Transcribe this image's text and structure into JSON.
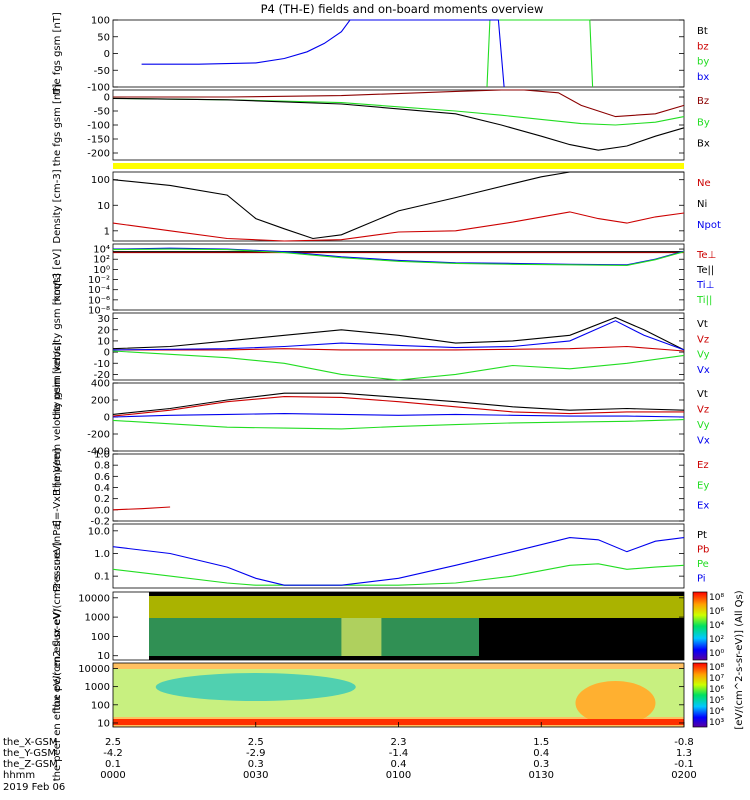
{
  "page": {
    "title": "P4 (TH-E) fields and on-board moments overview",
    "time_axis": {
      "row_labels": [
        "the_X-GSM",
        "the_Y-GSM",
        "the_Z-GSM",
        "hhmm",
        "2019 Feb 06"
      ],
      "columns": [
        {
          "hhmm": "0000",
          "x": "2.5",
          "y": "-4.2",
          "z": "0.1"
        },
        {
          "hhmm": "0030",
          "x": "2.5",
          "y": "-2.9",
          "z": "0.3"
        },
        {
          "hhmm": "0100",
          "x": "2.3",
          "y": "-1.4",
          "z": "0.4"
        },
        {
          "hhmm": "0130",
          "x": "1.5",
          "y": "0.4",
          "z": "0.3"
        },
        {
          "hhmm": "0200",
          "x": "-0.8",
          "y": "1.3",
          "z": "-0.1"
        }
      ]
    }
  },
  "colors": {
    "black": "#000000",
    "red": "#cc0000",
    "darkred": "#8b0000",
    "green": "#22dd22",
    "blue": "#0000ee",
    "yellow": "#ffff00"
  },
  "chart_data": [
    {
      "type": "line",
      "panel": "fgs_gsm",
      "ylabel": "the fgs gsm [nT]",
      "ylim": [
        -100,
        100
      ],
      "yticks": [
        "100",
        "50",
        "0",
        "-50",
        "-100"
      ],
      "series": [
        {
          "name": "Bt",
          "color": "#000000",
          "t": [],
          "y": []
        },
        {
          "name": "bz",
          "color": "#cc0000",
          "t": [],
          "y": []
        },
        {
          "name": "by",
          "color": "#22dd22",
          "t": [
            65.5,
            66.0,
            83.5,
            84.0
          ],
          "y": [
            -100,
            100,
            100,
            -100
          ]
        },
        {
          "name": "bx",
          "color": "#0000ee",
          "t": [
            5,
            15,
            25,
            30,
            34,
            37,
            40,
            41.5,
            67.5,
            68.5
          ],
          "y": [
            -32,
            -32,
            -28,
            -15,
            5,
            30,
            65,
            100,
            100,
            -100
          ]
        }
      ]
    },
    {
      "type": "line",
      "panel": "fgs_gsm_2",
      "ylabel": "the fgs gsm [nT]",
      "ylim": [
        -225,
        25
      ],
      "yticks": [
        "0",
        "-50",
        "-100",
        "-150",
        "-200"
      ],
      "series": [
        {
          "name": "Bz",
          "color": "#8b0000",
          "t": [
            0,
            20,
            40,
            60,
            68,
            72,
            78,
            82,
            88,
            95,
            100
          ],
          "y": [
            0,
            0,
            5,
            20,
            35,
            38,
            15,
            -30,
            -70,
            -60,
            -30
          ]
        },
        {
          "name": "By",
          "color": "#22dd22",
          "t": [
            0,
            20,
            40,
            60,
            68,
            75,
            82,
            88,
            95,
            100
          ],
          "y": [
            -5,
            -10,
            -20,
            -50,
            -65,
            -80,
            -95,
            -100,
            -90,
            -70
          ]
        },
        {
          "name": "Bx",
          "color": "#000000",
          "t": [
            0,
            20,
            40,
            60,
            68,
            75,
            80,
            85,
            90,
            95,
            100
          ],
          "y": [
            -5,
            -10,
            -25,
            -60,
            -100,
            -140,
            -170,
            -190,
            -175,
            -140,
            -110
          ]
        }
      ]
    },
    {
      "type": "line",
      "panel": "density",
      "ylabel": "Density [cm-3]",
      "log": true,
      "ylim": [
        0.4,
        200
      ],
      "yticks": [
        "100",
        "10",
        "1"
      ],
      "series": [
        {
          "name": "Ne",
          "color": "#cc0000",
          "t": [
            0,
            10,
            20,
            30,
            40,
            50,
            60,
            70,
            80,
            85,
            90,
            95,
            100
          ],
          "y": [
            2.0,
            1.0,
            0.5,
            0.4,
            0.45,
            0.9,
            1.0,
            2.2,
            5.5,
            3.0,
            2.0,
            3.5,
            5.0
          ]
        },
        {
          "name": "Ni",
          "color": "#000000",
          "t": [
            0,
            10,
            20,
            25,
            30,
            35,
            40,
            50,
            60,
            70,
            75,
            80,
            90,
            100
          ],
          "y": [
            100,
            60,
            25,
            3,
            1.2,
            0.5,
            0.7,
            6,
            20,
            70,
            130,
            220,
            220,
            200
          ]
        },
        {
          "name": "Npot",
          "color": "#0000ee",
          "t": [],
          "y": []
        }
      ]
    },
    {
      "type": "line",
      "panel": "moqt3",
      "ylabel": "moqt3 [eV]",
      "log": true,
      "ylim": [
        1e-08,
        100000.0
      ],
      "yticks": [
        "10^4",
        "10^2",
        "10^0",
        "10^-2",
        "10^-4",
        "10^-6",
        "10^-8"
      ],
      "series": [
        {
          "name": "Te⊥",
          "color": "#cc0000",
          "t": [
            0,
            100
          ],
          "y": [
            2000,
            2000
          ]
        },
        {
          "name": "Te||",
          "color": "#000000",
          "t": [
            0,
            100
          ],
          "y": [
            3000,
            3000
          ]
        },
        {
          "name": "Ti⊥",
          "color": "#0000ee",
          "t": [
            0,
            10,
            20,
            30,
            40,
            50,
            60,
            70,
            80,
            90,
            95,
            100
          ],
          "y": [
            10000,
            15000,
            10000,
            3000,
            300,
            60,
            20,
            15,
            10,
            8,
            100,
            4000
          ]
        },
        {
          "name": "Ti||",
          "color": "#22dd22",
          "t": [
            0,
            10,
            20,
            30,
            40,
            50,
            60,
            70,
            80,
            90,
            95,
            100
          ],
          "y": [
            8000,
            10000,
            8000,
            2000,
            200,
            40,
            15,
            10,
            8,
            6,
            80,
            3000
          ]
        }
      ]
    },
    {
      "type": "line",
      "panel": "peim_velocity_low",
      "ylabel": "the peim velocity gsm [km/s]",
      "ylim": [
        -25,
        35
      ],
      "yticks": [
        "30",
        "20",
        "10",
        "0",
        "-10",
        "-20"
      ],
      "series": [
        {
          "name": "Vt",
          "color": "#000000",
          "t": [
            0,
            10,
            20,
            30,
            40,
            50,
            60,
            70,
            80,
            88,
            93,
            100
          ],
          "y": [
            3,
            5,
            10,
            15,
            20,
            15,
            8,
            10,
            15,
            31,
            20,
            2
          ]
        },
        {
          "name": "Vz",
          "color": "#cc0000",
          "t": [
            0,
            20,
            30,
            40,
            60,
            80,
            90,
            100
          ],
          "y": [
            2,
            2,
            3,
            2,
            2,
            3,
            5,
            1
          ]
        },
        {
          "name": "Vy",
          "color": "#22dd22",
          "t": [
            0,
            10,
            20,
            30,
            40,
            50,
            60,
            70,
            80,
            90,
            100
          ],
          "y": [
            1,
            -2,
            -5,
            -10,
            -20,
            -25,
            -20,
            -12,
            -15,
            -10,
            -3
          ]
        },
        {
          "name": "Vx",
          "color": "#0000ee",
          "t": [
            0,
            20,
            30,
            40,
            50,
            60,
            70,
            80,
            88,
            93,
            100
          ],
          "y": [
            2,
            3,
            5,
            8,
            6,
            4,
            5,
            10,
            28,
            15,
            2
          ]
        }
      ]
    },
    {
      "type": "line",
      "panel": "peem_velocity",
      "ylabel": "the peem velocity gsm [km/s]",
      "ylim": [
        -400,
        400
      ],
      "yticks": [
        "400",
        "200",
        "0",
        "-200",
        "-400"
      ],
      "series": [
        {
          "name": "Vt",
          "color": "#000000",
          "t": [
            0,
            10,
            20,
            30,
            40,
            50,
            60,
            70,
            80,
            90,
            100
          ],
          "y": [
            30,
            100,
            200,
            280,
            280,
            230,
            180,
            120,
            80,
            100,
            80
          ]
        },
        {
          "name": "Vz",
          "color": "#cc0000",
          "t": [
            0,
            10,
            20,
            30,
            40,
            50,
            60,
            70,
            80,
            90,
            100
          ],
          "y": [
            10,
            80,
            180,
            240,
            230,
            180,
            120,
            60,
            40,
            60,
            60
          ]
        },
        {
          "name": "Vy",
          "color": "#22dd22",
          "t": [
            0,
            10,
            20,
            30,
            40,
            50,
            60,
            70,
            80,
            90,
            100
          ],
          "y": [
            -40,
            -80,
            -120,
            -130,
            -140,
            -110,
            -90,
            -70,
            -60,
            -50,
            -30
          ]
        },
        {
          "name": "Vx",
          "color": "#0000ee",
          "t": [
            0,
            10,
            20,
            30,
            40,
            50,
            60,
            70,
            80,
            90,
            100
          ],
          "y": [
            0,
            20,
            30,
            40,
            30,
            20,
            30,
            20,
            10,
            10,
            0
          ]
        }
      ]
    },
    {
      "type": "line",
      "panel": "efield",
      "ylabel": "E=-VxB [mV/m]",
      "ylim": [
        -0.2,
        1.0
      ],
      "yticks": [
        "1.0",
        "0.8",
        "0.6",
        "0.4",
        "0.2",
        "0.0",
        "-0.2"
      ],
      "series": [
        {
          "name": "Ez",
          "color": "#cc0000",
          "t": [
            0,
            5,
            10
          ],
          "y": [
            0.0,
            0.02,
            0.05
          ]
        },
        {
          "name": "Ey",
          "color": "#22dd22",
          "t": [],
          "y": []
        },
        {
          "name": "Ex",
          "color": "#0000ee",
          "t": [],
          "y": []
        }
      ]
    },
    {
      "type": "line",
      "panel": "pressure",
      "ylabel": "Pressure [nPa]",
      "log": true,
      "ylim": [
        0.03,
        20
      ],
      "yticks": [
        "10.0",
        "1.0",
        "0.1"
      ],
      "series": [
        {
          "name": "Pt",
          "color": "#000000",
          "t": [],
          "y": []
        },
        {
          "name": "Pb",
          "color": "#cc0000",
          "t": [],
          "y": []
        },
        {
          "name": "Pe",
          "color": "#22dd22",
          "t": [
            0,
            10,
            20,
            25,
            30,
            40,
            50,
            60,
            70,
            80,
            85,
            90,
            95,
            100
          ],
          "y": [
            0.2,
            0.1,
            0.05,
            0.04,
            0.04,
            0.04,
            0.04,
            0.05,
            0.1,
            0.3,
            0.35,
            0.2,
            0.25,
            0.3
          ]
        },
        {
          "name": "Pi",
          "color": "#0000ee",
          "t": [
            0,
            10,
            20,
            25,
            30,
            40,
            50,
            60,
            70,
            80,
            85,
            90,
            95,
            100
          ],
          "y": [
            2.0,
            1.0,
            0.25,
            0.08,
            0.04,
            0.04,
            0.08,
            0.3,
            1.2,
            5.0,
            4.0,
            1.2,
            3.5,
            5.0
          ]
        }
      ]
    },
    {
      "type": "heatmap",
      "panel": "peir_en_eflux",
      "ylabel": "the peir en eflux eV/(cm2-s-sr-eV)",
      "log": true,
      "ylim": [
        6,
        20000
      ],
      "yticks": [
        "10000",
        "1000",
        "100",
        "10"
      ]
    },
    {
      "type": "heatmap",
      "panel": "peer_en_eflux",
      "ylabel": "the peer en eflux eV/(cm2-s-sr-eV)",
      "log": true,
      "ylim": [
        6,
        20000
      ],
      "yticks": [
        "10000",
        "1000",
        "100",
        "10"
      ]
    }
  ],
  "colorbar": {
    "title": "[eV/(cm^2-s-sr-eV)] (All Qs)",
    "upper_ticks": [
      "10^8",
      "10^6",
      "10^4",
      "10^2",
      "10^0"
    ],
    "lower_ticks": [
      "10^8",
      "10^7",
      "10^6",
      "10^5",
      "10^4",
      "10^3"
    ]
  }
}
